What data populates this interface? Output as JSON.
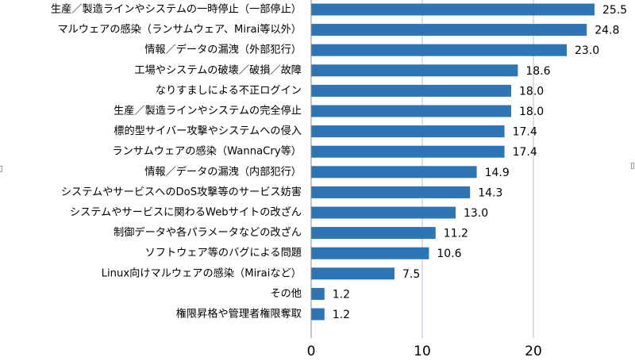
{
  "chart_data": {
    "type": "bar",
    "orientation": "horizontal",
    "categories": [
      "生産／製造ラインやシステムの一時停止（一部停止）",
      "マルウェアの感染（ランサムウェア、Mirai等以外）",
      "情報／データの漏洩（外部犯行）",
      "工場やシステムの破壊／破損／故障",
      "なりすましによる不正ログイン",
      "生産／製造ラインやシステムの完全停止",
      "標的型サイバー攻撃やシステムへの侵入",
      "ランサムウェアの感染（WannaCry等）",
      "情報／データの漏洩（内部犯行）",
      "システムやサービスへのDoS攻撃等のサービス妨害",
      "システムやサービスに関わるWebサイトの改ざん",
      "制御データや各パラメータなどの改ざん",
      "ソフトウェア等のバグによる問題",
      "Linux向けマルウェアの感染（Miraiなど）",
      "その他",
      "権限昇格や管理者権限奪取"
    ],
    "values": [
      25.5,
      24.8,
      23.0,
      18.6,
      18.0,
      18.0,
      17.4,
      17.4,
      14.9,
      14.3,
      13.0,
      11.2,
      10.6,
      7.5,
      1.2,
      1.2
    ],
    "value_labels": [
      "25.5",
      "24.8",
      "23.0",
      "18.6",
      "18.0",
      "18.0",
      "17.4",
      "17.4",
      "14.9",
      "14.3",
      "13.0",
      "11.2",
      "10.6",
      "7.5",
      "1.2",
      "1.2"
    ],
    "xlim": [
      0,
      30
    ],
    "x_ticks": [
      0,
      10,
      20
    ],
    "x_tick_labels": [
      "0",
      "10",
      "20"
    ],
    "grid": "vertical",
    "bar_color": "#2e75b6",
    "grid_color": "#b8b8e0",
    "title": "",
    "xlabel": "",
    "ylabel": ""
  }
}
